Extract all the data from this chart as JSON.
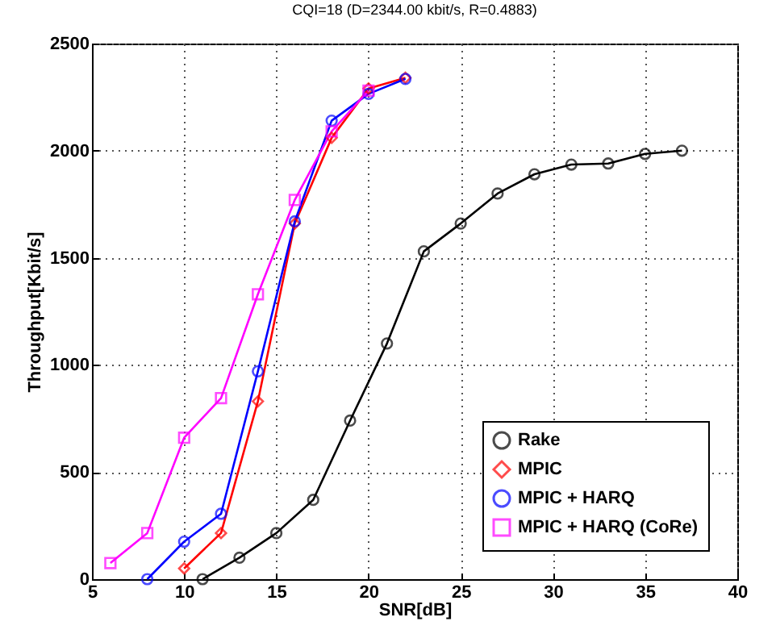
{
  "chart_data": {
    "type": "line",
    "title": "CQI=18 (D=2344.00 kbit/s, R=0.4883)",
    "xlabel": "SNR[dB]",
    "ylabel": "Throughput[Kbit/s]",
    "xlim": [
      5,
      40
    ],
    "xticks": [
      5,
      10,
      15,
      20,
      25,
      30,
      35,
      40
    ],
    "ylim": [
      0,
      2500
    ],
    "yticks": [
      0,
      500,
      1000,
      1500,
      2000,
      2500
    ],
    "grid": true,
    "legend": "bottom right",
    "line_style": "solid",
    "series": [
      {
        "name": "Rake",
        "color": "#000000",
        "marker": "circle",
        "x": [
          11,
          13,
          15,
          17,
          19,
          21,
          23,
          25,
          27,
          29,
          31,
          33,
          35,
          37
        ],
        "values": [
          0,
          100,
          215,
          370,
          740,
          1100,
          1530,
          1660,
          1800,
          1890,
          1935,
          1940,
          1985,
          2000
        ]
      },
      {
        "name": "MPIC",
        "color": "#ff0000",
        "marker": "diamond",
        "x": [
          10,
          12,
          14,
          16,
          18,
          20,
          22
        ],
        "values": [
          50,
          215,
          830,
          1660,
          2060,
          2290,
          2340
        ]
      },
      {
        "name": "MPIC + HARQ",
        "color": "#0000ff",
        "marker": "circle",
        "x": [
          8,
          10,
          12,
          14,
          16,
          18,
          20,
          22
        ],
        "values": [
          0,
          175,
          305,
          970,
          1670,
          2140,
          2265,
          2335
        ]
      },
      {
        "name": "MPIC + HARQ (CoRe)",
        "color": "#ff00ff",
        "marker": "square",
        "x": [
          6,
          8,
          10,
          12,
          14,
          16,
          18,
          20
        ],
        "values": [
          75,
          215,
          660,
          845,
          1330,
          1770,
          2090,
          2280
        ]
      }
    ]
  }
}
